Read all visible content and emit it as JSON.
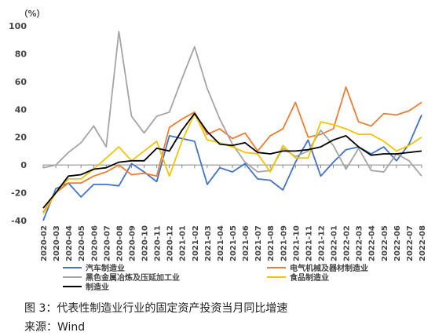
{
  "caption": "图 3：代表性制造业行业的固定资产投资当月同比增速",
  "source": "来源：Wind",
  "chart_data": {
    "type": "line",
    "unit_label": "（%）",
    "ylim": [
      -40,
      100
    ],
    "yticks": [
      -40,
      -20,
      0,
      20,
      40,
      60,
      80,
      100
    ],
    "grid": false,
    "legend_position": "bottom",
    "categories": [
      "2020-02",
      "2020-03",
      "2020-04",
      "2020-05",
      "2020-06",
      "2020-07",
      "2020-08",
      "2020-09",
      "2020-10",
      "2020-11",
      "2020-12",
      "2021-01",
      "2021-02",
      "2021-03",
      "2021-04",
      "2021-05",
      "2021-06",
      "2021-07",
      "2021-08",
      "2021-09",
      "2021-10",
      "2021-11",
      "2021-12",
      "2022-01",
      "2022-02",
      "2022-03",
      "2022-04",
      "2022-05",
      "2022-06",
      "2022-07",
      "2022-08"
    ],
    "series": [
      {
        "name": "汽车制造业",
        "color": "#4472c4",
        "values": [
          -40,
          -17,
          -13,
          -23,
          -14,
          -14,
          -15,
          1,
          -5,
          -12,
          21,
          19,
          17,
          -14,
          -2,
          -5,
          1,
          -10,
          -11,
          -18,
          2,
          18,
          -8,
          2,
          11,
          13,
          8,
          13,
          3,
          15,
          36
        ]
      },
      {
        "name": "电气机械及器材制造业",
        "color": "#ed7d31",
        "values": [
          -34,
          -20,
          -13,
          -13,
          -8,
          -5,
          0,
          -7,
          -6,
          -8,
          27,
          33,
          38,
          22,
          26,
          19,
          23,
          10,
          21,
          26,
          45,
          20,
          22,
          26,
          56,
          31,
          28,
          37,
          36,
          39,
          45
        ]
      },
      {
        "name": "黑色金属冶炼及压延加工业",
        "color": "#a5a5a5",
        "values": [
          -2,
          0,
          9,
          16,
          28,
          13,
          96,
          35,
          23,
          35,
          38,
          62,
          85,
          55,
          33,
          15,
          2,
          -5,
          -4,
          12,
          6,
          10,
          25,
          14,
          -3,
          12,
          -4,
          -5,
          8,
          3,
          -8
        ]
      },
      {
        "name": "食品制造业",
        "color": "#f2c500",
        "values": [
          -35,
          -20,
          -10,
          -10,
          -3,
          5,
          13,
          3,
          10,
          17,
          -8,
          17,
          37,
          18,
          16,
          13,
          9,
          8,
          -5,
          14,
          5,
          5,
          31,
          29,
          26,
          22,
          22,
          17,
          10,
          14,
          20
        ]
      },
      {
        "name": "制造业",
        "color": "#000000",
        "values": [
          -31,
          -20,
          -8,
          -7,
          -3,
          -2,
          2,
          3,
          3,
          12,
          10,
          25,
          37,
          24,
          15,
          14,
          16,
          9,
          8,
          10,
          10,
          11,
          13,
          18,
          21,
          13,
          7,
          8,
          8,
          9,
          10
        ]
      }
    ]
  }
}
